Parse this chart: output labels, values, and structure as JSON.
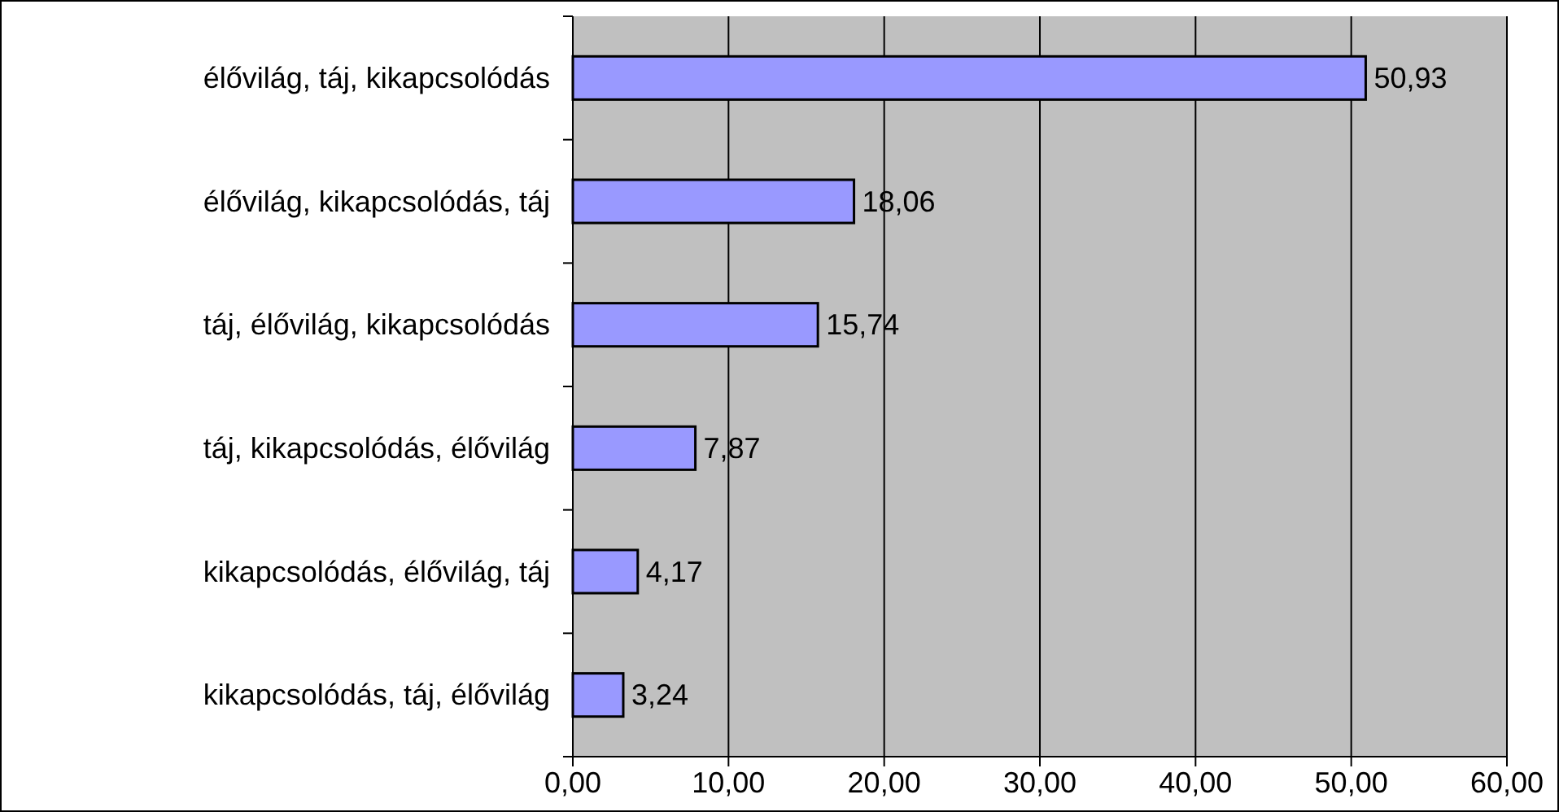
{
  "chart_data": {
    "type": "bar",
    "orientation": "horizontal",
    "categories": [
      "élővilág, táj, kikapcsolódás",
      "élővilág, kikapcsolódás, táj",
      "táj, élővilág, kikapcsolódás",
      "táj, kikapcsolódás, élővilág",
      "kikapcsolódás, élővilág, táj",
      "kikapcsolódás, táj, élővilág"
    ],
    "values": [
      50.93,
      18.06,
      15.74,
      7.87,
      4.17,
      3.24
    ],
    "value_labels": [
      "50,93",
      "18,06",
      "15,74",
      "7,87",
      "4,17",
      "3,24"
    ],
    "color": "#9999ff",
    "xlim": [
      0,
      60
    ],
    "xticks": [
      {
        "value": 0,
        "label": "0,00"
      },
      {
        "value": 10,
        "label": "10,00"
      },
      {
        "value": 20,
        "label": "20,00"
      },
      {
        "value": 30,
        "label": "30,00"
      },
      {
        "value": 40,
        "label": "40,00"
      },
      {
        "value": 50,
        "label": "50,00"
      },
      {
        "value": 60,
        "label": "60,00"
      }
    ],
    "grid": "x"
  }
}
